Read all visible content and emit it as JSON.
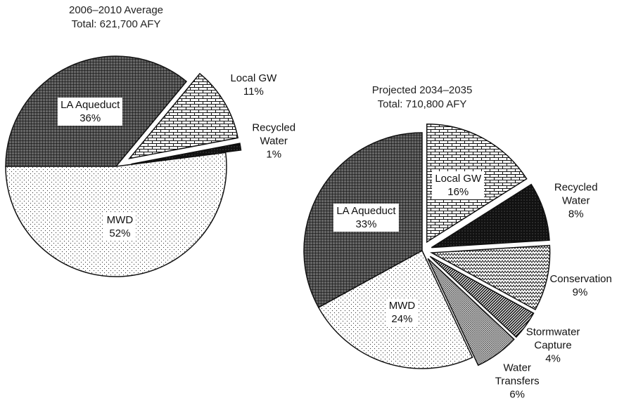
{
  "chart_data": [
    {
      "type": "pie",
      "title": "2006–2010 Average",
      "subtitle": "Total: 621,700 AFY",
      "categories": [
        "LA Aqueduct",
        "Local GW",
        "Recycled Water",
        "MWD"
      ],
      "values": [
        36,
        11,
        1,
        52
      ],
      "value_labels": [
        "36%",
        "11%",
        "1%",
        "52%"
      ],
      "patterns": [
        "crosshatch",
        "brick",
        "dark-dots",
        "dots"
      ],
      "exploded": [
        false,
        true,
        true,
        false
      ]
    },
    {
      "type": "pie",
      "title": "Projected 2034–2035",
      "subtitle": "Total: 710,800 AFY",
      "categories": [
        "Local GW",
        "Recycled Water",
        "Conservation",
        "Stormwater Capture",
        "Water Transfers",
        "MWD",
        "LA Aqueduct"
      ],
      "values": [
        16,
        8,
        9,
        4,
        6,
        24,
        33
      ],
      "value_labels": [
        "16%",
        "8%",
        "9%",
        "4%",
        "6%",
        "24%",
        "33%"
      ],
      "patterns": [
        "brick",
        "dark-dots",
        "zigzag",
        "diagonal",
        "fine-cross",
        "dots",
        "crosshatch"
      ],
      "exploded": [
        true,
        true,
        true,
        true,
        true,
        false,
        false
      ]
    }
  ]
}
